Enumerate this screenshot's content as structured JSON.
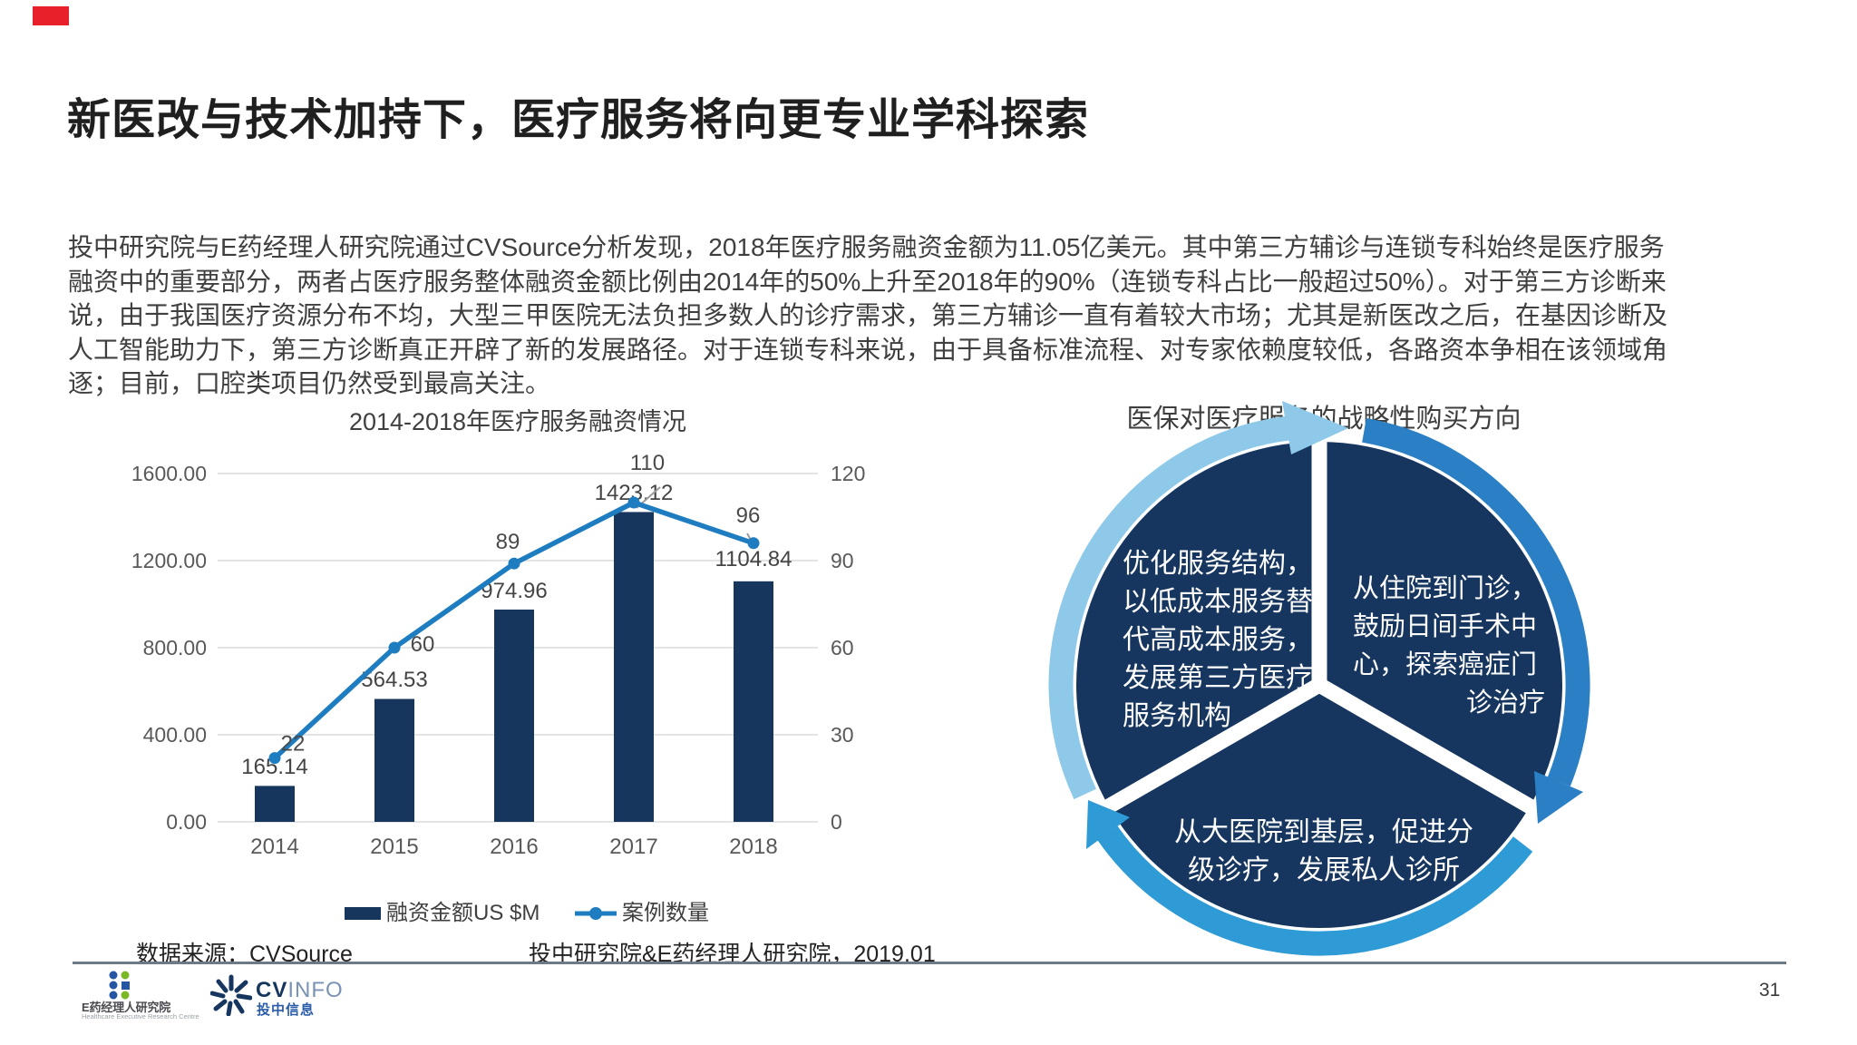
{
  "slide": {
    "title": "新医改与技术加持下，医疗服务将向更专业学科探索",
    "body": "投中研究院与E药经理人研究院通过CVSource分析发现，2018年医疗服务融资金额为11.05亿美元。其中第三方辅诊与连锁专科始终是医疗服务\n融资中的重要部分，两者占医疗服务整体融资金额比例由2014年的50%上升至2018年的90%（连锁专科占比一般超过50%）。对于第三方诊断来\n说，由于我国医疗资源分布不均，大型三甲医院无法负担多数人的诊疗需求，第三方辅诊一直有着较大市场；尤其是新医改之后，在基因诊断及\n人工智能助力下，第三方诊断真正开辟了新的发展路径。对于连锁专科来说，由于具备标准流程、对专家依赖度较低，各路资本争相在该领域角\n逐；目前，口腔类项目仍然受到最高关注。",
    "page_number": "31",
    "accent_red": "#e8202a"
  },
  "chart_data": {
    "type": "bar+line",
    "title": "2014-2018年医疗服务融资情况",
    "categories": [
      "2014",
      "2015",
      "2016",
      "2017",
      "2018"
    ],
    "series": [
      {
        "name": "融资金额US $M",
        "type": "bar",
        "axis": "left",
        "color": "#17365d",
        "values": [
          165.14,
          564.53,
          974.96,
          1423.12,
          1104.84
        ]
      },
      {
        "name": "案例数量",
        "type": "line",
        "axis": "right",
        "color": "#1e7cc0",
        "values": [
          22,
          60,
          89,
          110,
          96
        ]
      }
    ],
    "left_axis": {
      "ticks": [
        "1600.00",
        "1200.00",
        "800.00",
        "400.00",
        "0.00"
      ],
      "tick_values": [
        1600,
        1200,
        800,
        400,
        0
      ],
      "min": 0,
      "max": 1600
    },
    "right_axis": {
      "ticks": [
        "120",
        "90",
        "60",
        "30",
        "0"
      ],
      "tick_values": [
        120,
        90,
        60,
        30,
        0
      ],
      "min": 0,
      "max": 120
    },
    "legend_position": "bottom",
    "grid": true,
    "source_note": "数据来源：CVSource",
    "credit_note": "投中研究院&E药经理人研究院，2019.01"
  },
  "diagram": {
    "title": "医保对医疗服务的战略性购买方向",
    "sector_color": "#16365f",
    "arc_colors": {
      "light": "#8fc9e9",
      "right": "#2b7fc4",
      "bottom": "#2e9ad6"
    },
    "sectors": [
      {
        "id": "left",
        "text": "优化服务结构，\n以低成本服务替\n代高成本服务，\n发展第三方医疗\n服务机构"
      },
      {
        "id": "right",
        "text": "从住院到门诊，\n鼓励日间手术中\n心，探索癌症门",
        "text_last": "诊治疗"
      },
      {
        "id": "bottom",
        "text": "从大医院到基层，促进分\n级诊疗，发展私人诊所"
      }
    ]
  },
  "footer": {
    "logo1": {
      "name": "E药经理人研究院",
      "subtitle": "Healthcare Executive Research Centre"
    },
    "logo2": {
      "cv": "CV",
      "info": "INFO",
      "cn": "投中信息"
    }
  }
}
